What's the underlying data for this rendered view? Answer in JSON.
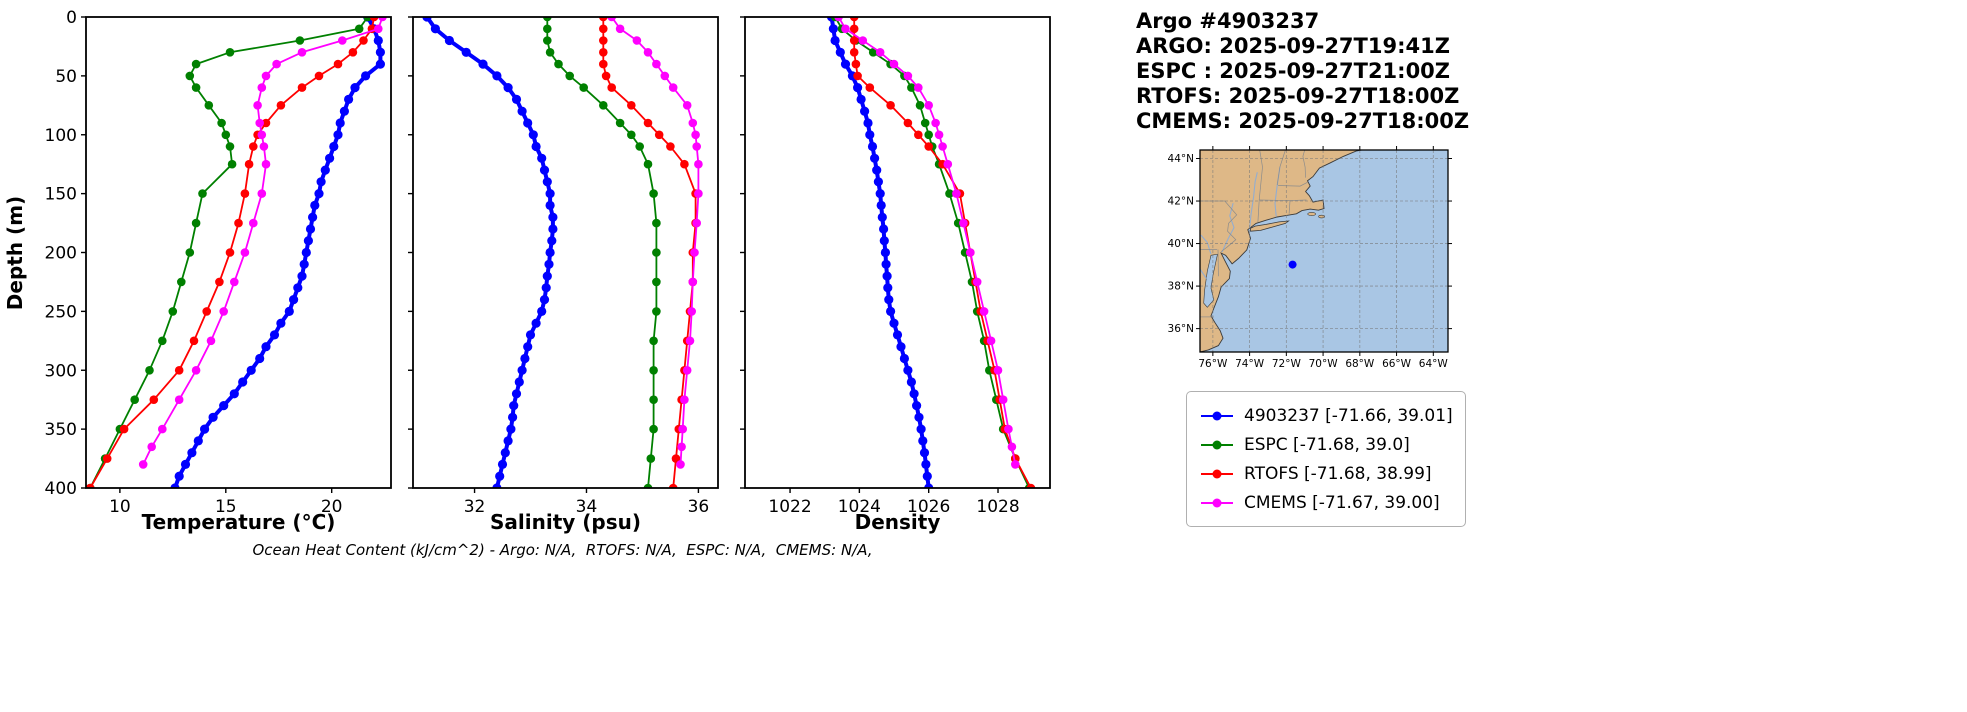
{
  "header": {
    "title": "Argo #4903237",
    "lines": [
      "ARGO: 2025-09-27T19:41Z",
      "ESPC : 2025-09-27T21:00Z",
      "RTOFS: 2025-09-27T18:00Z",
      "CMEMS: 2025-09-27T18:00Z"
    ]
  },
  "axes": {
    "ylabel": "Depth (m)",
    "footer": "Ocean Heat Content (kJ/cm^2) - Argo: N/A,  RTOFS: N/A,  ESPC: N/A,  CMEMS: N/A,"
  },
  "chart_data": [
    {
      "type": "line",
      "xlabel": "Temperature (°C)",
      "ylabel": "Depth (m)",
      "xlim": [
        8.4,
        22.8
      ],
      "ylim": [
        400,
        0
      ],
      "xticks": [
        10,
        15,
        20
      ],
      "yticks": [
        0,
        50,
        100,
        150,
        200,
        250,
        300,
        350,
        400
      ],
      "show_ytick_labels": true,
      "grid": false,
      "series": [
        {
          "name": "4903237",
          "color": "#0000ff",
          "line_width": 4,
          "marker_size": 4.6,
          "depth": [
            0,
            10,
            20,
            30,
            40,
            50,
            60,
            70,
            80,
            90,
            100,
            110,
            120,
            130,
            140,
            150,
            160,
            170,
            180,
            190,
            200,
            210,
            220,
            230,
            240,
            250,
            260,
            270,
            280,
            290,
            300,
            310,
            320,
            330,
            340,
            350,
            360,
            370,
            380,
            390,
            400
          ],
          "values": [
            21.7,
            22.0,
            22.2,
            22.3,
            22.3,
            21.6,
            21.1,
            20.8,
            20.6,
            20.4,
            20.3,
            20.1,
            19.9,
            19.7,
            19.5,
            19.4,
            19.2,
            19.1,
            19.0,
            18.9,
            18.8,
            18.7,
            18.6,
            18.4,
            18.2,
            18.0,
            17.6,
            17.3,
            16.9,
            16.6,
            16.2,
            15.8,
            15.4,
            14.9,
            14.4,
            14.0,
            13.7,
            13.4,
            13.1,
            12.8,
            12.6
          ]
        },
        {
          "name": "ESPC",
          "color": "#008000",
          "line_width": 1.8,
          "marker_size": 4.3,
          "depth": [
            0,
            10,
            20,
            30,
            40,
            50,
            60,
            75,
            90,
            100,
            110,
            125,
            150,
            175,
            200,
            225,
            250,
            275,
            300,
            325,
            350,
            375,
            400
          ],
          "values": [
            21.7,
            21.3,
            18.5,
            15.2,
            13.6,
            13.3,
            13.6,
            14.2,
            14.8,
            15.0,
            15.2,
            15.3,
            13.9,
            13.6,
            13.3,
            12.9,
            12.5,
            12.0,
            11.4,
            10.7,
            10.0,
            9.3,
            8.6
          ]
        },
        {
          "name": "RTOFS",
          "color": "#ff0000",
          "line_width": 1.8,
          "marker_size": 4.3,
          "depth": [
            0,
            10,
            20,
            30,
            40,
            50,
            60,
            75,
            90,
            100,
            110,
            125,
            150,
            175,
            200,
            225,
            250,
            275,
            300,
            325,
            350,
            375,
            400
          ],
          "values": [
            22.0,
            21.9,
            21.5,
            21.0,
            20.3,
            19.4,
            18.6,
            17.6,
            16.9,
            16.5,
            16.3,
            16.1,
            15.9,
            15.6,
            15.2,
            14.7,
            14.1,
            13.5,
            12.8,
            11.6,
            10.2,
            9.4,
            8.6
          ]
        },
        {
          "name": "CMEMS",
          "color": "#ff00ff",
          "line_width": 1.8,
          "marker_size": 4.3,
          "depth": [
            0,
            10,
            20,
            30,
            40,
            50,
            60,
            75,
            90,
            100,
            110,
            125,
            150,
            175,
            200,
            225,
            250,
            275,
            300,
            325,
            350,
            365,
            380
          ],
          "values": [
            22.4,
            22.2,
            20.5,
            18.6,
            17.4,
            16.9,
            16.7,
            16.5,
            16.6,
            16.7,
            16.8,
            16.9,
            16.7,
            16.3,
            15.9,
            15.4,
            14.9,
            14.3,
            13.6,
            12.8,
            12.0,
            11.5,
            11.1
          ]
        }
      ]
    },
    {
      "type": "line",
      "xlabel": "Salinity (psu)",
      "ylabel": "Depth (m)",
      "xlim": [
        30.9,
        36.35
      ],
      "ylim": [
        400,
        0
      ],
      "xticks": [
        32,
        34,
        36
      ],
      "yticks": [
        0,
        50,
        100,
        150,
        200,
        250,
        300,
        350,
        400
      ],
      "show_ytick_labels": false,
      "grid": false,
      "series": [
        {
          "name": "4903237",
          "color": "#0000ff",
          "line_width": 4,
          "marker_size": 4.6,
          "depth": [
            0,
            10,
            20,
            30,
            40,
            50,
            60,
            70,
            80,
            90,
            100,
            110,
            120,
            130,
            140,
            150,
            160,
            170,
            180,
            190,
            200,
            210,
            220,
            230,
            240,
            250,
            260,
            270,
            280,
            290,
            300,
            310,
            320,
            330,
            340,
            350,
            360,
            370,
            380,
            390,
            400
          ],
          "values": [
            31.15,
            31.3,
            31.55,
            31.85,
            32.15,
            32.4,
            32.6,
            32.75,
            32.85,
            32.95,
            33.05,
            33.1,
            33.2,
            33.25,
            33.3,
            33.35,
            33.35,
            33.4,
            33.4,
            33.38,
            33.35,
            33.33,
            33.3,
            33.28,
            33.25,
            33.2,
            33.1,
            33.0,
            32.95,
            32.9,
            32.85,
            32.8,
            32.75,
            32.7,
            32.68,
            32.65,
            32.6,
            32.55,
            32.5,
            32.45,
            32.4
          ]
        },
        {
          "name": "ESPC",
          "color": "#008000",
          "line_width": 1.8,
          "marker_size": 4.3,
          "depth": [
            0,
            10,
            20,
            30,
            40,
            50,
            60,
            75,
            90,
            100,
            110,
            125,
            150,
            175,
            200,
            225,
            250,
            275,
            300,
            325,
            350,
            375,
            400
          ],
          "values": [
            33.3,
            33.3,
            33.3,
            33.35,
            33.5,
            33.7,
            33.95,
            34.3,
            34.6,
            34.8,
            34.95,
            35.1,
            35.2,
            35.25,
            35.25,
            35.25,
            35.25,
            35.2,
            35.2,
            35.2,
            35.2,
            35.15,
            35.1
          ]
        },
        {
          "name": "RTOFS",
          "color": "#ff0000",
          "line_width": 1.8,
          "marker_size": 4.3,
          "depth": [
            0,
            10,
            20,
            30,
            40,
            50,
            60,
            75,
            90,
            100,
            110,
            125,
            150,
            175,
            200,
            225,
            250,
            275,
            300,
            325,
            350,
            375,
            400
          ],
          "values": [
            34.3,
            34.3,
            34.3,
            34.3,
            34.3,
            34.35,
            34.45,
            34.8,
            35.1,
            35.3,
            35.5,
            35.75,
            35.95,
            35.95,
            35.9,
            35.9,
            35.85,
            35.8,
            35.75,
            35.7,
            35.65,
            35.6,
            35.55
          ]
        },
        {
          "name": "CMEMS",
          "color": "#ff00ff",
          "line_width": 1.8,
          "marker_size": 4.3,
          "depth": [
            0,
            10,
            20,
            30,
            40,
            50,
            60,
            75,
            90,
            100,
            110,
            125,
            150,
            175,
            200,
            225,
            250,
            275,
            300,
            325,
            350,
            365,
            380
          ],
          "values": [
            34.45,
            34.6,
            34.9,
            35.1,
            35.25,
            35.4,
            35.55,
            35.8,
            35.9,
            35.95,
            35.97,
            36.0,
            36.0,
            35.97,
            35.93,
            35.9,
            35.88,
            35.85,
            35.8,
            35.75,
            35.72,
            35.7,
            35.68
          ]
        }
      ]
    },
    {
      "type": "line",
      "xlabel": "Density",
      "ylabel": "Depth (m)",
      "xlim": [
        1020.7,
        1029.5
      ],
      "ylim": [
        400,
        0
      ],
      "xticks": [
        1022,
        1024,
        1026,
        1028
      ],
      "yticks": [
        0,
        50,
        100,
        150,
        200,
        250,
        300,
        350,
        400
      ],
      "show_ytick_labels": false,
      "grid": false,
      "series": [
        {
          "name": "4903237",
          "color": "#0000ff",
          "line_width": 4,
          "marker_size": 4.6,
          "depth": [
            0,
            10,
            20,
            30,
            40,
            50,
            60,
            70,
            80,
            90,
            100,
            110,
            120,
            130,
            140,
            150,
            160,
            170,
            180,
            190,
            200,
            210,
            220,
            230,
            240,
            250,
            260,
            270,
            280,
            290,
            300,
            310,
            320,
            330,
            340,
            350,
            360,
            370,
            380,
            390,
            400
          ],
          "values": [
            1023.2,
            1023.25,
            1023.3,
            1023.45,
            1023.6,
            1023.8,
            1023.95,
            1024.05,
            1024.15,
            1024.25,
            1024.3,
            1024.38,
            1024.44,
            1024.5,
            1024.55,
            1024.6,
            1024.63,
            1024.66,
            1024.7,
            1024.72,
            1024.75,
            1024.77,
            1024.8,
            1024.82,
            1024.85,
            1024.9,
            1025.0,
            1025.1,
            1025.2,
            1025.3,
            1025.4,
            1025.5,
            1025.58,
            1025.65,
            1025.72,
            1025.78,
            1025.83,
            1025.88,
            1025.92,
            1025.96,
            1026.0
          ]
        },
        {
          "name": "ESPC",
          "color": "#008000",
          "line_width": 1.8,
          "marker_size": 4.3,
          "depth": [
            0,
            10,
            20,
            30,
            40,
            50,
            60,
            75,
            90,
            100,
            110,
            125,
            150,
            175,
            200,
            225,
            250,
            275,
            300,
            325,
            350,
            375,
            400
          ],
          "values": [
            1023.3,
            1023.5,
            1023.9,
            1024.4,
            1024.9,
            1025.3,
            1025.5,
            1025.75,
            1025.9,
            1026.0,
            1026.1,
            1026.3,
            1026.6,
            1026.85,
            1027.05,
            1027.25,
            1027.4,
            1027.6,
            1027.75,
            1027.95,
            1028.15,
            1028.5,
            1028.9
          ]
        },
        {
          "name": "RTOFS",
          "color": "#ff0000",
          "line_width": 1.8,
          "marker_size": 4.3,
          "depth": [
            0,
            10,
            20,
            30,
            40,
            50,
            60,
            75,
            90,
            100,
            110,
            125,
            150,
            175,
            200,
            225,
            250,
            275,
            300,
            325,
            350,
            375,
            400
          ],
          "values": [
            1023.85,
            1023.85,
            1023.85,
            1023.85,
            1023.9,
            1023.95,
            1024.3,
            1024.9,
            1025.4,
            1025.7,
            1026.0,
            1026.4,
            1026.9,
            1027.05,
            1027.2,
            1027.35,
            1027.5,
            1027.7,
            1027.9,
            1028.05,
            1028.2,
            1028.5,
            1028.95
          ]
        },
        {
          "name": "CMEMS",
          "color": "#ff00ff",
          "line_width": 1.8,
          "marker_size": 4.3,
          "depth": [
            0,
            10,
            20,
            30,
            40,
            50,
            60,
            75,
            90,
            100,
            110,
            125,
            150,
            175,
            200,
            225,
            250,
            275,
            300,
            325,
            350,
            365,
            380
          ],
          "values": [
            1023.4,
            1023.6,
            1024.1,
            1024.6,
            1025.0,
            1025.4,
            1025.7,
            1026.0,
            1026.2,
            1026.3,
            1026.4,
            1026.55,
            1026.8,
            1027.0,
            1027.2,
            1027.4,
            1027.6,
            1027.8,
            1028.0,
            1028.15,
            1028.3,
            1028.4,
            1028.5
          ]
        }
      ]
    }
  ],
  "map": {
    "extent": {
      "lon_min": -76.7,
      "lon_max": -63.2,
      "lat_min": 34.9,
      "lat_max": 44.4
    },
    "lat_ticks": [
      {
        "value": 44,
        "label": "44°N"
      },
      {
        "value": 42,
        "label": "42°N"
      },
      {
        "value": 40,
        "label": "40°N"
      },
      {
        "value": 38,
        "label": "38°N"
      },
      {
        "value": 36,
        "label": "36°N"
      }
    ],
    "lon_ticks": [
      {
        "value": -76,
        "label": "76°W"
      },
      {
        "value": -74,
        "label": "74°W"
      },
      {
        "value": -72,
        "label": "72°W"
      },
      {
        "value": -70,
        "label": "70°W"
      },
      {
        "value": -68,
        "label": "68°W"
      },
      {
        "value": -66,
        "label": "66°W"
      },
      {
        "value": -64,
        "label": "64°W"
      }
    ],
    "marker": {
      "lon": -71.66,
      "lat": 39.01,
      "color": "#0000ff"
    },
    "colors": {
      "ocean": "#a9c6e4",
      "land": "#deb887",
      "coast": "#3a3a3a",
      "grid": "#787878",
      "border": "#8c8c8c",
      "river": "#93add0"
    }
  },
  "legend": {
    "entries": [
      {
        "label": "4903237 [-71.66, 39.01]",
        "color": "#0000ff"
      },
      {
        "label": "ESPC [-71.68, 39.0]",
        "color": "#008000"
      },
      {
        "label": "RTOFS [-71.68, 38.99]",
        "color": "#ff0000"
      },
      {
        "label": "CMEMS [-71.67, 39.00]",
        "color": "#ff00ff"
      }
    ]
  }
}
